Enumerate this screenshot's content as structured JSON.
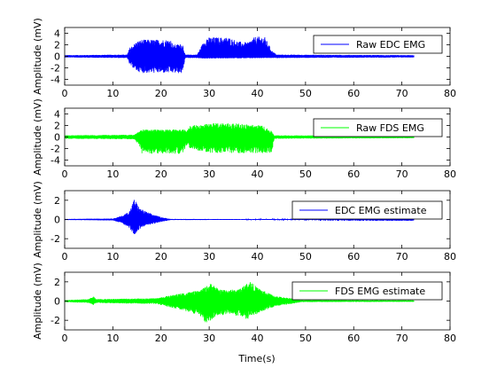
{
  "figure": {
    "xlabel_bottom": "Time(s)"
  },
  "chart_data": [
    {
      "type": "line",
      "ylabel": "Amplitude (mV)",
      "xlim": [
        0,
        80
      ],
      "ylim": [
        -5,
        5
      ],
      "x_ticks": [
        0,
        10,
        20,
        30,
        40,
        50,
        60,
        70,
        80
      ],
      "y_ticks": [
        -4,
        -2,
        0,
        2,
        4
      ],
      "signal_end": 72.5,
      "series": [
        {
          "name": "Raw EDC EMG",
          "color": "#0000ff",
          "envelope": [
            [
              0,
              0.2
            ],
            [
              13,
              0.3
            ],
            [
              13.5,
              1.5
            ],
            [
              15,
              2.6
            ],
            [
              16,
              2.9
            ],
            [
              22,
              2.9
            ],
            [
              22.5,
              2.0
            ],
            [
              24.5,
              2.2
            ],
            [
              25,
              0.3
            ],
            [
              27.5,
              0.3
            ],
            [
              28.5,
              2.0
            ],
            [
              29.5,
              3.3
            ],
            [
              34,
              3.3
            ],
            [
              36,
              2.6
            ],
            [
              38,
              2.4
            ],
            [
              39.5,
              3.4
            ],
            [
              41.5,
              3.4
            ],
            [
              43,
              1.0
            ],
            [
              44,
              0.3
            ],
            [
              72.5,
              0.2
            ]
          ],
          "envelope_neg": [
            [
              0,
              -0.2
            ],
            [
              13,
              -0.3
            ],
            [
              13.5,
              -1.5
            ],
            [
              15,
              -2.6
            ],
            [
              16,
              -2.9
            ],
            [
              22,
              -2.9
            ],
            [
              24.5,
              -3.0
            ],
            [
              25,
              -0.3
            ],
            [
              27.5,
              -0.3
            ],
            [
              28.5,
              -0.4
            ],
            [
              44,
              -0.3
            ],
            [
              72.5,
              -0.2
            ]
          ]
        }
      ]
    },
    {
      "type": "line",
      "ylabel": "Amplitude (mV)",
      "xlim": [
        0,
        80
      ],
      "ylim": [
        -5,
        5
      ],
      "x_ticks": [
        0,
        10,
        20,
        30,
        40,
        50,
        60,
        70,
        80
      ],
      "y_ticks": [
        -4,
        -2,
        0,
        2,
        4
      ],
      "signal_end": 72.5,
      "series": [
        {
          "name": "Raw FDS EMG",
          "color": "#00ff00",
          "envelope": [
            [
              0,
              0.3
            ],
            [
              14.5,
              0.4
            ],
            [
              15.5,
              1.0
            ],
            [
              16,
              1.3
            ],
            [
              24.5,
              1.3
            ],
            [
              25.5,
              1.2
            ],
            [
              26,
              2.0
            ],
            [
              30,
              2.3
            ],
            [
              32,
              2.5
            ],
            [
              37,
              2.3
            ],
            [
              41,
              2.0
            ],
            [
              43,
              1.0
            ],
            [
              43.5,
              0.3
            ],
            [
              72.5,
              0.2
            ]
          ],
          "envelope_neg": [
            [
              0,
              -0.3
            ],
            [
              14.5,
              -0.4
            ],
            [
              15.5,
              -1.5
            ],
            [
              16,
              -2.9
            ],
            [
              24.5,
              -2.9
            ],
            [
              25.5,
              -1.2
            ],
            [
              26,
              -2.0
            ],
            [
              30,
              -2.8
            ],
            [
              43,
              -2.8
            ],
            [
              43.5,
              -0.3
            ],
            [
              72.5,
              -0.2
            ]
          ]
        }
      ]
    },
    {
      "type": "line",
      "ylabel": "Amplitude (mV)",
      "xlim": [
        0,
        80
      ],
      "ylim": [
        -3,
        3
      ],
      "x_ticks": [
        0,
        10,
        20,
        30,
        40,
        50,
        60,
        70,
        80
      ],
      "y_ticks": [
        -2,
        0,
        2
      ],
      "signal_end": 72.5,
      "series": [
        {
          "name": "EDC EMG estimate",
          "color": "#0000ff",
          "envelope": [
            [
              0,
              0.05
            ],
            [
              10,
              0.1
            ],
            [
              12,
              0.4
            ],
            [
              13.5,
              0.9
            ],
            [
              14.5,
              2.2
            ],
            [
              15.5,
              1.2
            ],
            [
              17,
              0.8
            ],
            [
              19,
              0.4
            ],
            [
              20.5,
              0.2
            ],
            [
              22,
              0.05
            ],
            [
              72.5,
              0.03
            ]
          ],
          "envelope_neg": [
            [
              0,
              -0.05
            ],
            [
              10,
              -0.1
            ],
            [
              12,
              -0.4
            ],
            [
              13.5,
              -1.0
            ],
            [
              14.5,
              -1.6
            ],
            [
              15.5,
              -1.0
            ],
            [
              17,
              -0.6
            ],
            [
              19,
              -0.4
            ],
            [
              20.5,
              -0.2
            ],
            [
              22,
              -0.05
            ],
            [
              72.5,
              -0.03
            ]
          ]
        }
      ]
    },
    {
      "type": "line",
      "ylabel": "Amplitude (mV)",
      "xlim": [
        0,
        80
      ],
      "ylim": [
        -3,
        3
      ],
      "x_ticks": [
        0,
        10,
        20,
        30,
        40,
        50,
        60,
        70,
        80
      ],
      "y_ticks": [
        -2,
        0,
        2
      ],
      "signal_end": 72.5,
      "series": [
        {
          "name": "FDS EMG estimate",
          "color": "#00ff00",
          "envelope": [
            [
              0,
              0.1
            ],
            [
              5,
              0.2
            ],
            [
              6,
              0.5
            ],
            [
              6.5,
              0.2
            ],
            [
              19,
              0.3
            ],
            [
              24,
              0.8
            ],
            [
              28,
              1.1
            ],
            [
              30.5,
              1.9
            ],
            [
              32,
              1.2
            ],
            [
              36,
              1.2
            ],
            [
              38.5,
              2.1
            ],
            [
              40,
              1.4
            ],
            [
              42,
              0.9
            ],
            [
              44,
              0.5
            ],
            [
              47,
              0.3
            ],
            [
              49,
              0.1
            ],
            [
              72.5,
              0.08
            ]
          ],
          "envelope_neg": [
            [
              0,
              -0.1
            ],
            [
              5,
              -0.2
            ],
            [
              6,
              -0.4
            ],
            [
              6.5,
              -0.2
            ],
            [
              19,
              -0.3
            ],
            [
              24,
              -0.9
            ],
            [
              28,
              -1.5
            ],
            [
              29.5,
              -2.4
            ],
            [
              31,
              -1.7
            ],
            [
              34,
              -1.3
            ],
            [
              38,
              -1.9
            ],
            [
              40,
              -1.3
            ],
            [
              42,
              -0.9
            ],
            [
              44,
              -0.5
            ],
            [
              47,
              -0.3
            ],
            [
              49,
              -0.1
            ],
            [
              72.5,
              -0.08
            ]
          ]
        }
      ]
    }
  ]
}
